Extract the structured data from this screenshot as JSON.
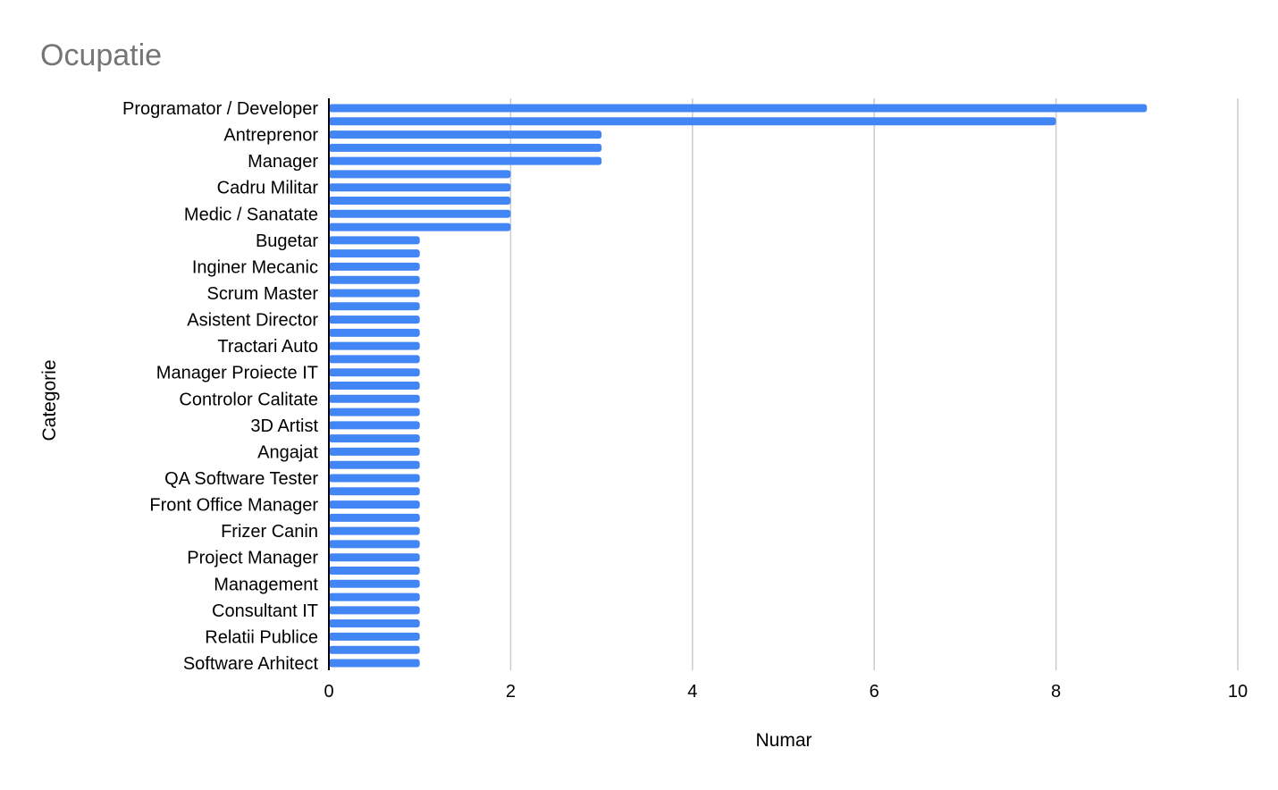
{
  "chart_data": {
    "type": "bar",
    "orientation": "horizontal",
    "title": "Ocupatie",
    "xlabel": "Numar",
    "ylabel": "Categorie",
    "xlim": [
      0,
      10
    ],
    "xticks": [
      "0",
      "2",
      "4",
      "6",
      "8",
      "10"
    ],
    "grid": true,
    "legend": "none",
    "bar_color": "#4285f4",
    "visible_category_labels": [
      "Programator / Developer",
      "Antreprenor",
      "Manager",
      "Cadru Militar",
      "Medic / Sanatate",
      "Bugetar",
      "Inginer Mecanic",
      "Scrum Master",
      "Asistent Director",
      "Tractari Auto",
      "Manager Proiecte IT",
      "Controlor Calitate",
      "3D Artist",
      "Angajat",
      "QA Software Tester",
      "Front Office Manager",
      "Frizer Canin",
      "Project Manager",
      "Management",
      "Consultant IT",
      "Relatii Publice",
      "Software Arhitect"
    ],
    "values": [
      9,
      8,
      3,
      3,
      3,
      2,
      2,
      2,
      2,
      2,
      1,
      1,
      1,
      1,
      1,
      1,
      1,
      1,
      1,
      1,
      1,
      1,
      1,
      1,
      1,
      1,
      1,
      1,
      1,
      1,
      1,
      1,
      1,
      1,
      1,
      1,
      1,
      1,
      1,
      1,
      1,
      1,
      1
    ]
  }
}
